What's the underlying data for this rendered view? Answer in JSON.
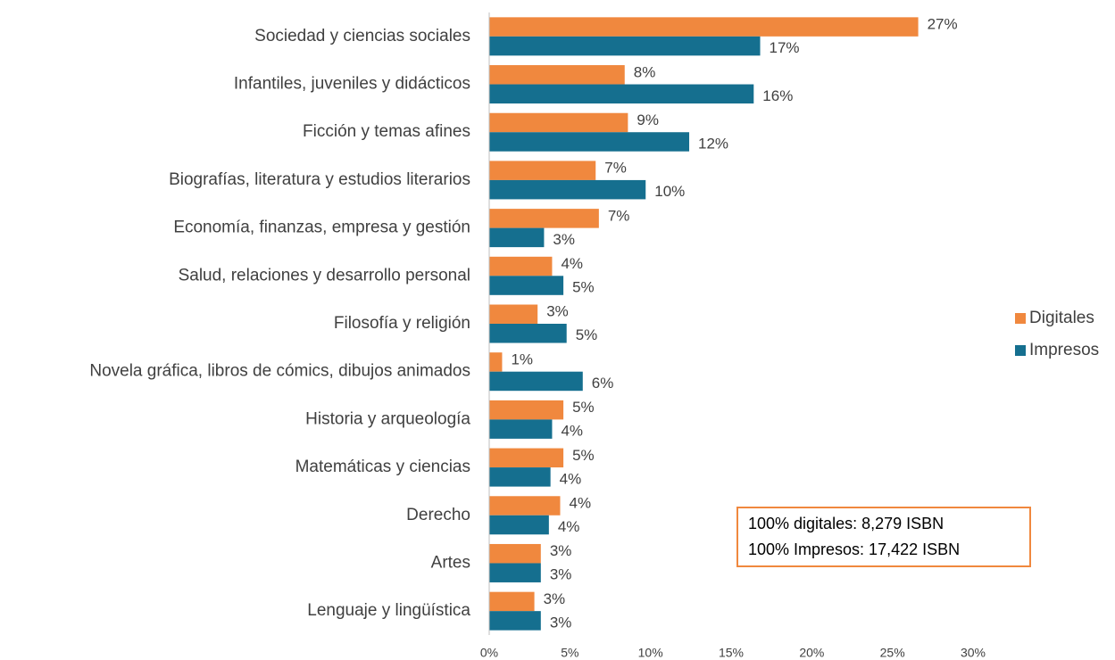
{
  "chart_data": {
    "type": "bar",
    "orientation": "horizontal",
    "categories": [
      "Sociedad y ciencias sociales",
      "Infantiles, juveniles y didácticos",
      "Ficción y temas afines",
      "Biografías, literatura y estudios literarios",
      "Economía, finanzas, empresa y gestión",
      "Salud, relaciones y desarrollo personal",
      "Filosofía y religión",
      "Novela gráfica, libros de cómics, dibujos animados",
      "Historia y arqueología",
      "Matemáticas y ciencias",
      "Derecho",
      "Artes",
      "Lenguaje y lingüística"
    ],
    "series": [
      {
        "name": "Digitales",
        "color": "#f0883e",
        "values": [
          26.6,
          8.4,
          8.6,
          6.6,
          6.8,
          3.9,
          3.0,
          0.8,
          4.6,
          4.6,
          4.4,
          3.2,
          2.8
        ],
        "value_labels": [
          "27%",
          "8%",
          "9%",
          "7%",
          "7%",
          "4%",
          "3%",
          "1%",
          "5%",
          "5%",
          "4%",
          "3%",
          "3%"
        ]
      },
      {
        "name": "Impresos",
        "color": "#156f8f",
        "values": [
          16.8,
          16.4,
          12.4,
          9.7,
          3.4,
          4.6,
          4.8,
          5.8,
          3.9,
          3.8,
          3.7,
          3.2,
          3.2
        ],
        "value_labels": [
          "17%",
          "16%",
          "12%",
          "10%",
          "3%",
          "5%",
          "5%",
          "6%",
          "4%",
          "4%",
          "4%",
          "3%",
          "3%"
        ]
      }
    ],
    "xlim": [
      0,
      30
    ],
    "xticks": [
      {
        "value": 0,
        "label": "0%"
      },
      {
        "value": 5,
        "label": "5%"
      },
      {
        "value": 10,
        "label": "10%"
      },
      {
        "value": 15,
        "label": "15%"
      },
      {
        "value": 20,
        "label": "20%"
      },
      {
        "value": 25,
        "label": "25%"
      },
      {
        "value": 30,
        "label": "30%"
      }
    ],
    "legend": "right",
    "annotation": [
      "100% digitales: 8,279 ISBN",
      "100% Impresos: 17,422 ISBN"
    ]
  }
}
